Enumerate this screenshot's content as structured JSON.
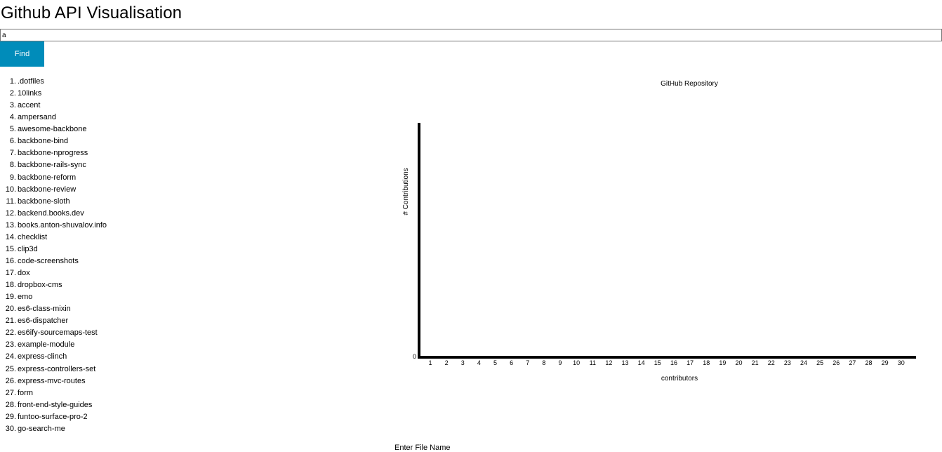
{
  "header": {
    "title": "Github API Visualisation"
  },
  "search": {
    "value": "a"
  },
  "find_button": {
    "label": "Find"
  },
  "repos": [
    ".dotfiles",
    "10links",
    "accent",
    "ampersand",
    "awesome-backbone",
    "backbone-bind",
    "backbone-nprogress",
    "backbone-rails-sync",
    "backbone-reform",
    "backbone-review",
    "backbone-sloth",
    "backend.books.dev",
    "books.anton-shuvalov.info",
    "checklist",
    "clip3d",
    "code-screenshots",
    "dox",
    "dropbox-cms",
    "emo",
    "es6-class-mixin",
    "es6-dispatcher",
    "es6ify-sourcemaps-test",
    "example-module",
    "express-clinch",
    "express-controllers-set",
    "express-mvc-routes",
    "form",
    "front-end-style-guides",
    "funtoo-surface-pro-2",
    "go-search-me"
  ],
  "chart_data": {
    "type": "bar",
    "title": "GitHub Repository",
    "xlabel": "contributors",
    "ylabel": "# Contributions",
    "categories": [
      "1",
      "2",
      "3",
      "4",
      "5",
      "6",
      "7",
      "8",
      "9",
      "10",
      "11",
      "12",
      "13",
      "14",
      "15",
      "16",
      "17",
      "18",
      "19",
      "20",
      "21",
      "22",
      "23",
      "24",
      "25",
      "26",
      "27",
      "28",
      "29",
      "30"
    ],
    "values": [
      0,
      0,
      0,
      0,
      0,
      0,
      0,
      0,
      0,
      0,
      0,
      0,
      0,
      0,
      0,
      0,
      0,
      0,
      0,
      0,
      0,
      0,
      0,
      0,
      0,
      0,
      0,
      0,
      0,
      0
    ],
    "y_tick_labels": [
      "0"
    ],
    "ylim": [
      0,
      1
    ]
  },
  "footer": {
    "label": "Enter File Name"
  }
}
